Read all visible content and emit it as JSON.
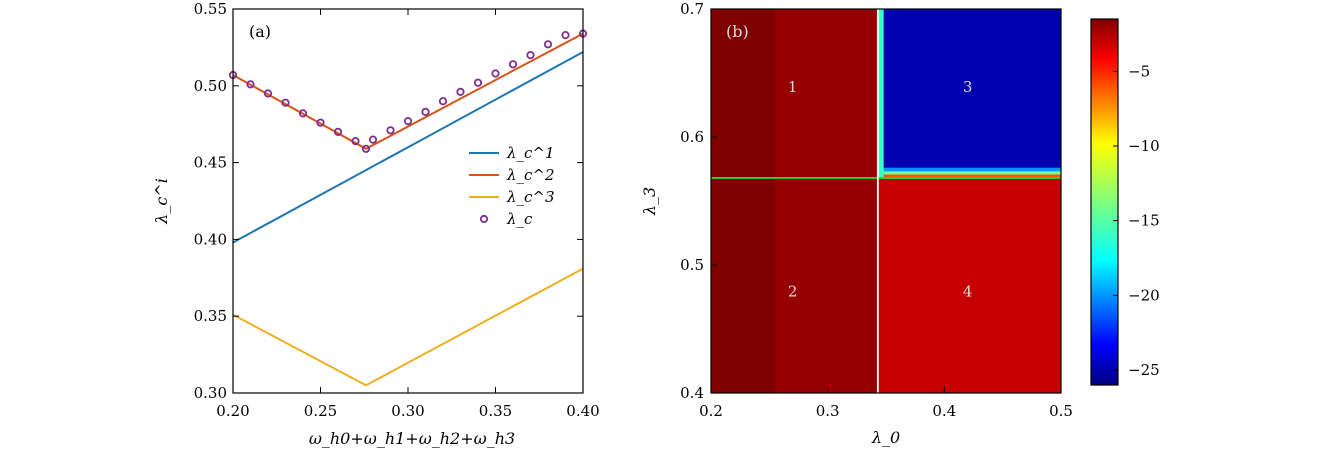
{
  "colors": {
    "lambda1": "#1f77b4",
    "lambda2": "#d95319",
    "lambda3": "#edb120",
    "marker": "#7e2f8e",
    "cut_h": "#22dd22",
    "cut_v": "#ffffff",
    "region_text": "#dddddd"
  },
  "chart_data": [
    {
      "type": "line",
      "panel_label": "(a)",
      "xlabel": "ω_h0+ω_h1+ω_h2+ω_h3",
      "ylabel": "λ_c^i",
      "xlim": [
        0.2,
        0.4
      ],
      "ylim": [
        0.3,
        0.55
      ],
      "xticks": [
        "0.20",
        "0.25",
        "0.30",
        "0.35",
        "0.40"
      ],
      "yticks": [
        "0.30",
        "0.35",
        "0.40",
        "0.45",
        "0.50",
        "0.55"
      ],
      "legend": [
        "λ_c^1",
        "λ_c^2",
        "λ_c^3",
        "λ_c"
      ],
      "legend_position": "center-right",
      "series": [
        {
          "name": "λ_c^1",
          "x": [
            0.2,
            0.4
          ],
          "y": [
            0.398,
            0.522
          ]
        },
        {
          "name": "λ_c^2",
          "x": [
            0.2,
            0.276,
            0.4
          ],
          "y": [
            0.507,
            0.459,
            0.534
          ]
        },
        {
          "name": "λ_c^3",
          "x": [
            0.2,
            0.276,
            0.4
          ],
          "y": [
            0.351,
            0.305,
            0.381
          ]
        },
        {
          "name": "λ_c",
          "marker": "circle",
          "x": [
            0.2,
            0.21,
            0.22,
            0.23,
            0.24,
            0.25,
            0.26,
            0.27,
            0.276,
            0.28,
            0.29,
            0.3,
            0.31,
            0.32,
            0.33,
            0.34,
            0.35,
            0.36,
            0.37,
            0.38,
            0.39,
            0.4
          ],
          "y": [
            0.507,
            0.501,
            0.495,
            0.489,
            0.482,
            0.476,
            0.47,
            0.464,
            0.459,
            0.465,
            0.471,
            0.477,
            0.483,
            0.49,
            0.496,
            0.502,
            0.508,
            0.514,
            0.52,
            0.527,
            0.533,
            0.534
          ]
        }
      ]
    },
    {
      "type": "heatmap",
      "panel_label": "(b)",
      "xlabel": "λ_0",
      "ylabel": "λ_3",
      "xlim": [
        0.2,
        0.5
      ],
      "ylim": [
        0.4,
        0.7
      ],
      "xticks": [
        "0.2",
        "0.3",
        "0.4",
        "0.5"
      ],
      "yticks": [
        "0.4",
        "0.5",
        "0.6",
        "0.7"
      ],
      "colorbar": {
        "range": [
          -26,
          -1.5
        ],
        "ticks": [
          "−5",
          "−10",
          "−15",
          "−20",
          "−25"
        ],
        "tick_values": [
          -5,
          -10,
          -15,
          -20,
          -25
        ]
      },
      "regions": [
        {
          "label": "1",
          "x": 0.27,
          "y": 0.64,
          "level": -2
        },
        {
          "label": "2",
          "x": 0.27,
          "y": 0.48,
          "level": -2
        },
        {
          "label": "3",
          "x": 0.42,
          "y": 0.64,
          "level": -25
        },
        {
          "label": "4",
          "x": 0.42,
          "y": 0.48,
          "level": -3
        }
      ],
      "boundary_lambda0": 0.343,
      "boundary_lambda3": 0.568,
      "grid": false
    }
  ]
}
